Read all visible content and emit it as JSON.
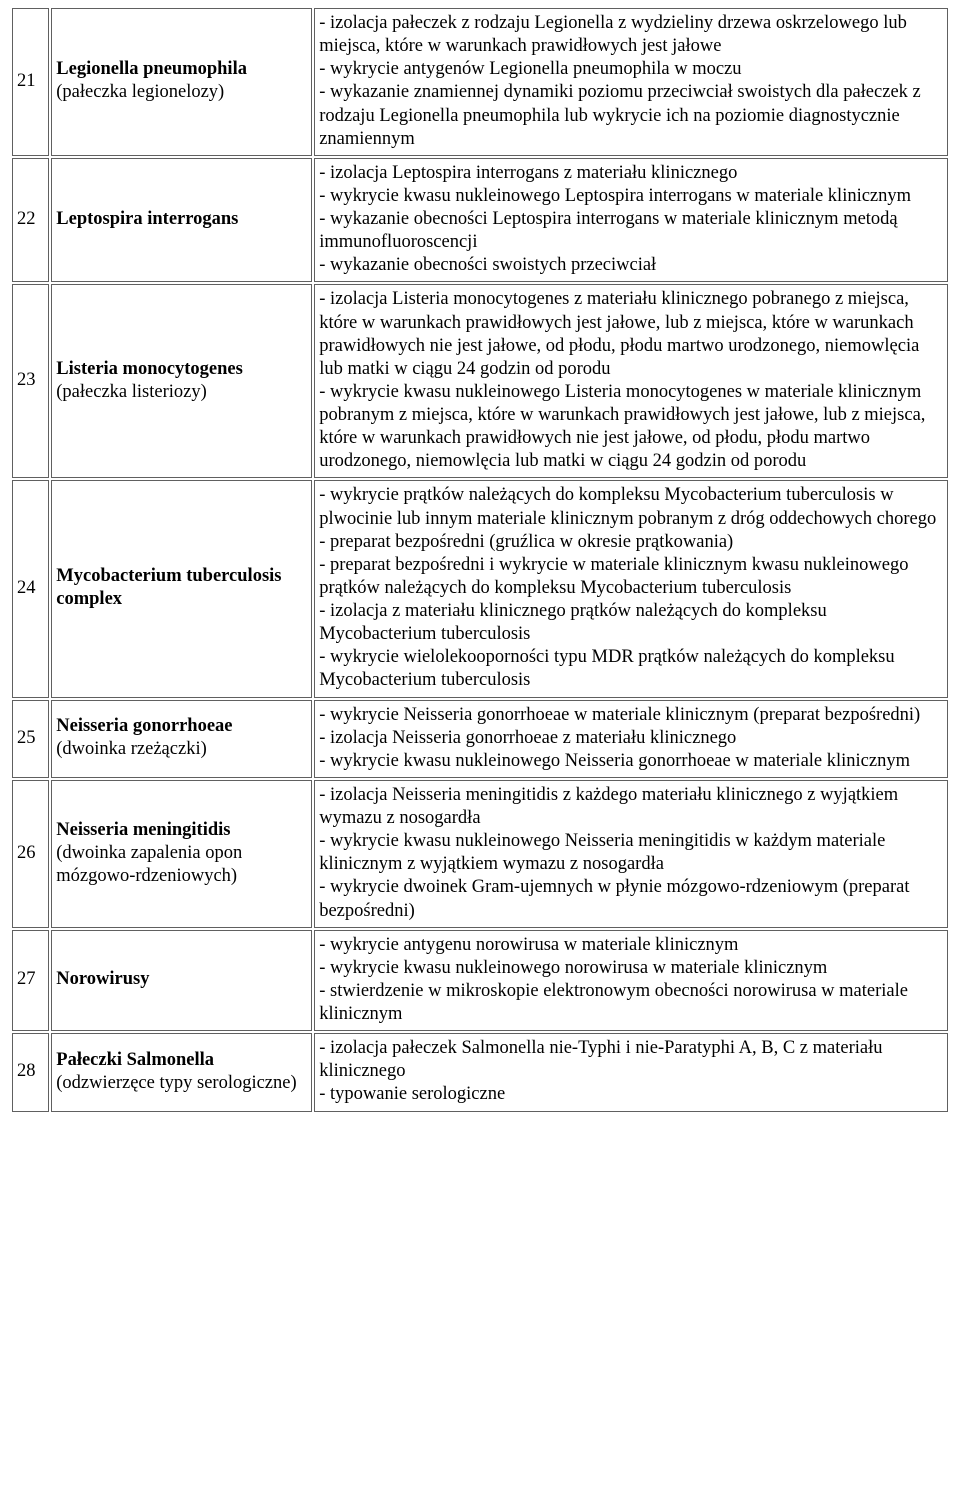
{
  "table": {
    "rows": [
      {
        "num": "21",
        "name_bold": "Legionella pneumophila",
        "name_sub": "(pałeczka legionelozy)",
        "criteria": [
          "- izolacja pałeczek z rodzaju Legionella z wydzieliny drzewa oskrzelowego lub miejsca, które w warunkach prawidłowych jest jałowe",
          "- wykrycie antygenów Legionella pneumophila w moczu",
          "- wykazanie znamiennej dynamiki poziomu przeciwciał swoistych dla pałeczek z rodzaju Legionella pneumophila lub wykrycie ich na poziomie diagnostycznie znamiennym"
        ]
      },
      {
        "num": "22",
        "name_bold": "Leptospira interrogans",
        "name_sub": "",
        "criteria": [
          "- izolacja Leptospira interrogans z materiału klinicznego",
          "- wykrycie kwasu nukleinowego Leptospira interrogans w materiale klinicznym",
          "- wykazanie obecności Leptospira interrogans w materiale klinicznym metodą immunofluoroscencji",
          "- wykazanie obecności swoistych przeciwciał"
        ]
      },
      {
        "num": "23",
        "name_bold": "Listeria monocytogenes",
        "name_sub": "(pałeczka listeriozy)",
        "criteria": [
          "- izolacja Listeria monocytogenes z materiału klinicznego pobranego z miejsca, które w warunkach prawidłowych jest jałowe, lub z miejsca, które w warunkach prawidłowych nie jest jałowe, od płodu, płodu martwo urodzonego, niemowlęcia lub matki w ciągu 24 godzin od porodu",
          "- wykrycie kwasu nukleinowego Listeria monocytogenes w materiale klinicznym pobranym z miejsca, które w warunkach prawidłowych jest jałowe, lub z miejsca, które w warunkach prawidłowych nie jest jałowe, od płodu, płodu martwo urodzonego, niemowlęcia lub matki w ciągu 24 godzin od porodu"
        ]
      },
      {
        "num": "24",
        "name_bold": "Mycobacterium tuberculosis complex",
        "name_sub": "",
        "criteria": [
          "- wykrycie prątków należących do kompleksu Mycobacterium tuberculosis w plwocinie lub innym materiale klinicznym pobranym z dróg oddechowych chorego - preparat bezpośredni (gruźlica w okresie prątkowania)",
          "- preparat bezpośredni i wykrycie w materiale klinicznym kwasu nukleinowego prątków należących do kompleksu Mycobacterium tuberculosis",
          "- izolacja z materiału klinicznego prątków należących do kompleksu Mycobacterium tuberculosis",
          "- wykrycie wielolekooporności typu MDR prątków należących do kompleksu Mycobacterium tuberculosis"
        ]
      },
      {
        "num": "25",
        "name_bold": "Neisseria gonorrhoeae",
        "name_sub": "(dwoinka rzeżączki)",
        "criteria": [
          "- wykrycie Neisseria gonorrhoeae w materiale klinicznym (preparat bezpośredni)",
          "- izolacja Neisseria gonorrhoeae z materiału klinicznego",
          "- wykrycie kwasu nukleinowego Neisseria gonorrhoeae w materiale klinicznym"
        ]
      },
      {
        "num": "26",
        "name_bold": "Neisseria meningitidis",
        "name_sub": "(dwoinka zapalenia opon mózgowo-rdzeniowych)",
        "criteria": [
          "- izolacja Neisseria meningitidis z każdego materiału klinicznego z wyjątkiem wymazu z nosogardła",
          "- wykrycie kwasu nukleinowego Neisseria meningitidis w każdym materiale klinicznym z wyjątkiem wymazu z nosogardła",
          "- wykrycie dwoinek Gram-ujemnych w płynie mózgowo-rdzeniowym (preparat bezpośredni)"
        ]
      },
      {
        "num": "27",
        "name_bold": "Norowirusy",
        "name_sub": "",
        "criteria": [
          "- wykrycie antygenu norowirusa w materiale klinicznym",
          "- wykrycie kwasu nukleinowego norowirusa w materiale klinicznym",
          "- stwierdzenie w mikroskopie elektronowym obecności norowirusa w materiale klinicznym"
        ]
      },
      {
        "num": "28",
        "name_bold": "Pałeczki Salmonella",
        "name_sub": "(odzwierzęce typy serologiczne)",
        "criteria": [
          "- izolacja pałeczek Salmonella nie-Typhi i nie-Paratyphi A, B, C z materiału klinicznego",
          "- typowanie serologiczne"
        ]
      }
    ]
  },
  "style": {
    "font_family": "Times New Roman",
    "font_size_pt": 14,
    "border_color": "#606060",
    "text_color": "#000000",
    "background_color": "#ffffff"
  }
}
